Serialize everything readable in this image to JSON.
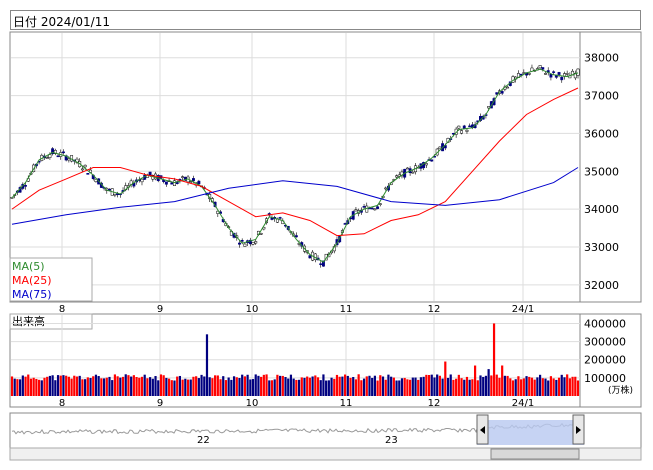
{
  "header": {
    "date_label": "日付 2024/01/11"
  },
  "legend": {
    "ma5": "MA(5)",
    "ma25": "MA(25)",
    "ma75": "MA(75)",
    "colors": {
      "ma5": "#2e8b2e",
      "ma25": "#ff0000",
      "ma75": "#0000cc"
    }
  },
  "volume_panel": {
    "title": "出来高",
    "unit": "(万株)"
  },
  "navigator": {
    "year_labels": [
      "22",
      "23"
    ]
  },
  "colors": {
    "up_candle": "#ffffff",
    "down_candle": "#000080",
    "vol_up": "#ff0000",
    "vol_down": "#000080",
    "nav_fill": "#b8c8f0"
  },
  "chart_data": [
    {
      "type": "candlestick",
      "title": "",
      "x_ticks": [
        "8",
        "9",
        "10",
        "11",
        "12",
        "24/1"
      ],
      "y_ticks": [
        32000,
        33000,
        34000,
        35000,
        36000,
        37000,
        38000
      ],
      "ylim": [
        31600,
        38600
      ],
      "grid": true,
      "series": [
        {
          "name": "MA(5)",
          "points": [
            [
              0,
              34300
            ],
            [
              5,
              34700
            ],
            [
              10,
              35300
            ],
            [
              15,
              35500
            ],
            [
              20,
              35400
            ],
            [
              25,
              35200
            ],
            [
              30,
              34900
            ],
            [
              35,
              34500
            ],
            [
              40,
              34400
            ],
            [
              45,
              34700
            ],
            [
              50,
              34900
            ],
            [
              55,
              34800
            ],
            [
              60,
              34700
            ],
            [
              65,
              34800
            ],
            [
              70,
              34600
            ],
            [
              75,
              34100
            ],
            [
              80,
              33500
            ],
            [
              85,
              33100
            ],
            [
              90,
              33200
            ],
            [
              95,
              33800
            ],
            [
              100,
              33700
            ],
            [
              105,
              33200
            ],
            [
              110,
              32800
            ],
            [
              115,
              32600
            ],
            [
              120,
              33100
            ],
            [
              125,
              33800
            ],
            [
              130,
              34000
            ],
            [
              135,
              34100
            ],
            [
              140,
              34700
            ],
            [
              145,
              34950
            ],
            [
              150,
              35100
            ],
            [
              155,
              35350
            ],
            [
              160,
              35700
            ],
            [
              165,
              36100
            ],
            [
              170,
              36150
            ],
            [
              175,
              36500
            ],
            [
              180,
              37100
            ],
            [
              185,
              37400
            ],
            [
              190,
              37600
            ],
            [
              195,
              37700
            ],
            [
              200,
              37550
            ],
            [
              205,
              37500
            ],
            [
              209,
              37600
            ]
          ]
        },
        {
          "name": "MA(25)",
          "points": [
            [
              0,
              34000
            ],
            [
              10,
              34500
            ],
            [
              20,
              34800
            ],
            [
              30,
              35100
            ],
            [
              40,
              35100
            ],
            [
              50,
              34900
            ],
            [
              60,
              34800
            ],
            [
              70,
              34600
            ],
            [
              80,
              34200
            ],
            [
              90,
              33800
            ],
            [
              100,
              33900
            ],
            [
              110,
              33700
            ],
            [
              120,
              33300
            ],
            [
              130,
              33350
            ],
            [
              140,
              33700
            ],
            [
              150,
              33850
            ],
            [
              160,
              34200
            ],
            [
              170,
              35000
            ],
            [
              180,
              35800
            ],
            [
              190,
              36500
            ],
            [
              200,
              36900
            ],
            [
              209,
              37200
            ]
          ]
        },
        {
          "name": "MA(75)",
          "points": [
            [
              0,
              33600
            ],
            [
              20,
              33850
            ],
            [
              40,
              34050
            ],
            [
              60,
              34200
            ],
            [
              80,
              34550
            ],
            [
              100,
              34750
            ],
            [
              120,
              34600
            ],
            [
              140,
              34200
            ],
            [
              160,
              34100
            ],
            [
              180,
              34250
            ],
            [
              200,
              34700
            ],
            [
              209,
              35100
            ]
          ]
        }
      ]
    },
    {
      "type": "bar",
      "title": "出来高",
      "x_ticks": [
        "8",
        "9",
        "10",
        "11",
        "12",
        "24/1"
      ],
      "y_ticks": [
        100000,
        200000,
        300000,
        400000
      ],
      "ylim": [
        0,
        430000
      ],
      "unit": "(万株)",
      "spikes": [
        [
          72,
          340000
        ],
        [
          160,
          190000
        ],
        [
          178,
          400000
        ]
      ],
      "baseline": 100000
    },
    {
      "type": "area",
      "x_labels": [
        "22",
        "23"
      ]
    }
  ]
}
